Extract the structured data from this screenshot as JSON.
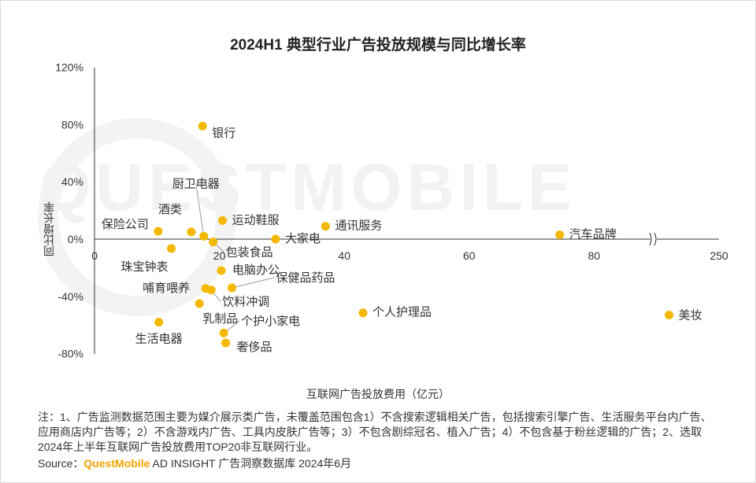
{
  "title": "2024H1 典型行业广告投放规模与同比增长率",
  "watermark": "QUESTMOBILE",
  "chart_data": {
    "type": "scatter",
    "title": "2024H1 典型行业广告投放规模与同比增长率",
    "xlabel": "互联网广告投放费用（亿元）",
    "ylabel": "同比增长率",
    "xlim": [
      0,
      100
    ],
    "ylim": [
      -0.8,
      1.2
    ],
    "x_axis_break": "between 80 and 250",
    "x_ticks": [
      "0",
      "20",
      "40",
      "60",
      "80",
      "250"
    ],
    "y_ticks": [
      "120%",
      "80%",
      "40%",
      "0%",
      "-40%",
      "-80%"
    ],
    "grid": false,
    "legend": "none",
    "color": "#F5B800",
    "points": [
      {
        "label": "银行",
        "x": 17.3,
        "y": 0.79
      },
      {
        "label": "厨卫电器",
        "x": 17.5,
        "y": 0.02
      },
      {
        "label": "酒类",
        "x": 15.5,
        "y": 0.05
      },
      {
        "label": "保险公司",
        "x": 10.2,
        "y": 0.055
      },
      {
        "label": "运动鞋服",
        "x": 20.5,
        "y": 0.13
      },
      {
        "label": "通讯服务",
        "x": 37.0,
        "y": 0.09
      },
      {
        "label": "汽车品牌",
        "x": 74.5,
        "y": 0.03
      },
      {
        "label": "大家电",
        "x": 29.0,
        "y": 0.0
      },
      {
        "label": "包装食品",
        "x": 19.0,
        "y": -0.02
      },
      {
        "label": "珠宝钟表",
        "x": 12.3,
        "y": -0.065
      },
      {
        "label": "电脑办公",
        "x": 20.3,
        "y": -0.22
      },
      {
        "label": "保健品药品",
        "x": 22.0,
        "y": -0.34
      },
      {
        "label": "哺育喂养",
        "x": 17.8,
        "y": -0.345
      },
      {
        "label": "饮料冲调",
        "x": 18.7,
        "y": -0.355
      },
      {
        "label": "乳制品",
        "x": 16.8,
        "y": -0.45
      },
      {
        "label": "个人护理品",
        "x": 43.0,
        "y": -0.515
      },
      {
        "label": "美妆",
        "x": 92.0,
        "y": -0.53
      },
      {
        "label": "生活电器",
        "x": 10.3,
        "y": -0.58
      },
      {
        "label": "个护小家电",
        "x": 20.7,
        "y": -0.655
      },
      {
        "label": "奢侈品",
        "x": 21.0,
        "y": -0.725
      }
    ]
  },
  "note": "注：1、广告监测数据范围主要为媒介展示类广告，未覆盖范围包含1）不含搜索逻辑相关广告，包括搜索引擎广告、生活服务平台内广告、应用商店内广告等；2）不含游戏内广告、工具内皮肤广告等；3）不包含剧综冠名、植入广告；4）不包含基于粉丝逻辑的广告；2、选取2024年上半年互联网广告投放费用TOP20非互联网行业。",
  "source": {
    "prefix": "Source：",
    "brand": "QuestMobile",
    "suffix": " AD INSIGHT 广告洞察数据库 2024年6月"
  }
}
